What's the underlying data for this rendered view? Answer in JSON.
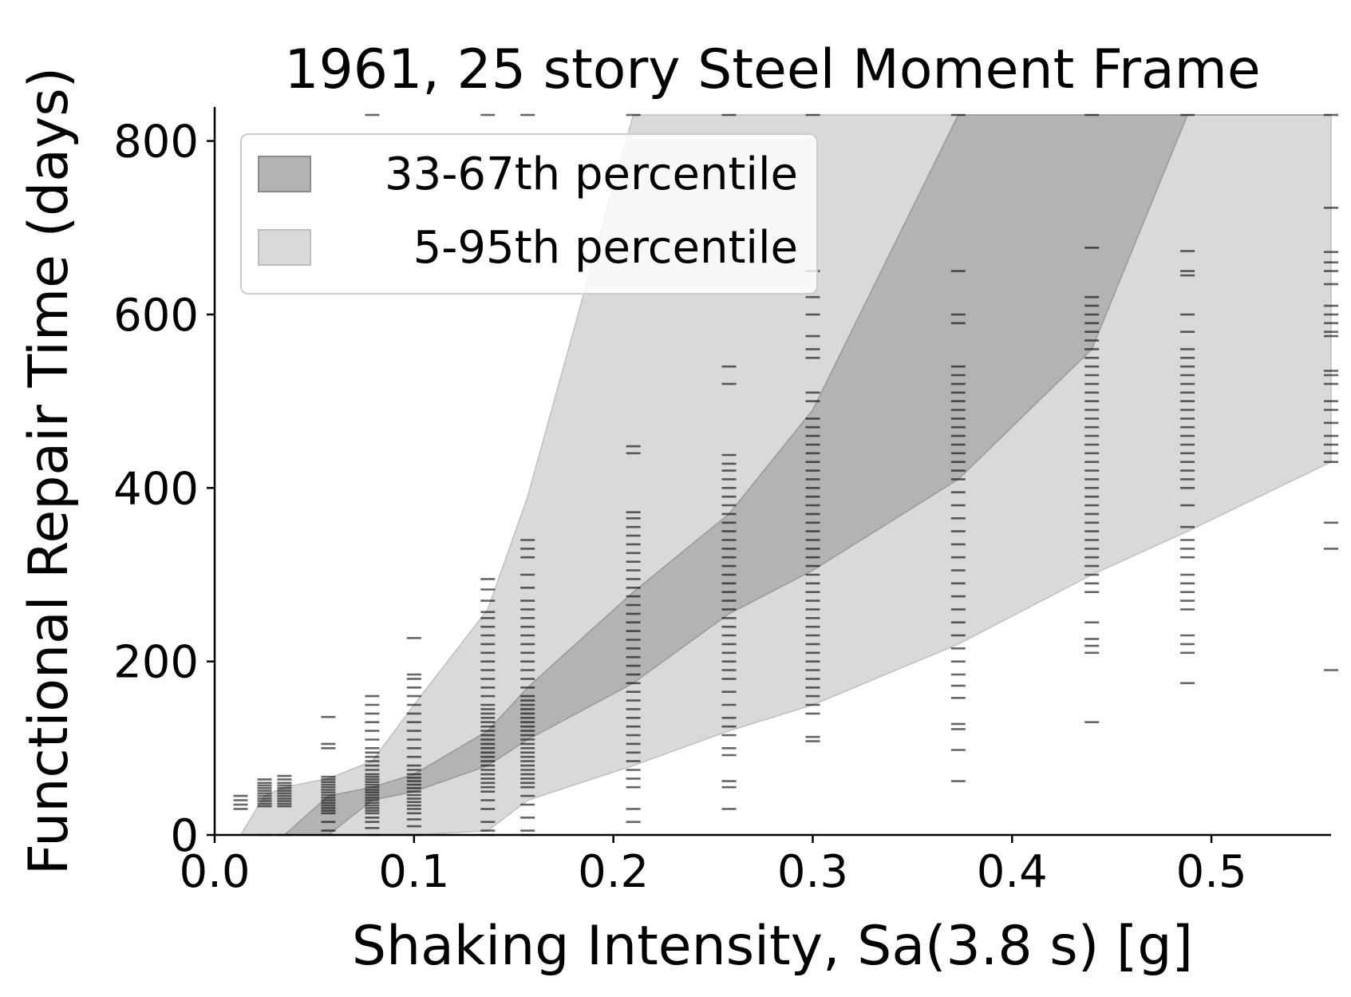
{
  "chart_data": {
    "type": "area",
    "title": "1961, 25 story Steel Moment Frame",
    "xlabel": "Shaking Intensity, Sa(3.8 s) [g]",
    "ylabel": "Functional Repair Time (days)",
    "xlim": [
      0.0,
      0.56
    ],
    "ylim": [
      0,
      830
    ],
    "x_ticks": [
      0.0,
      0.1,
      0.2,
      0.3,
      0.4,
      0.5
    ],
    "x_tick_labels": [
      "0.0",
      "0.1",
      "0.2",
      "0.3",
      "0.4",
      "0.5"
    ],
    "y_ticks": [
      0,
      200,
      400,
      600,
      800
    ],
    "y_tick_labels": [
      "0",
      "200",
      "400",
      "600",
      "800"
    ],
    "grid": false,
    "legend_position": "top-left",
    "legend": [
      {
        "label": "33-67th percentile",
        "color": "#b3b3b3"
      },
      {
        "label": "5-95th percentile",
        "color": "#d9d9d9"
      }
    ],
    "bands": [
      {
        "name": "5-95th percentile",
        "color": "#d9d9d9",
        "x": [
          0.013,
          0.025,
          0.035,
          0.057,
          0.079,
          0.1,
          0.137,
          0.157,
          0.21,
          0.258,
          0.3,
          0.373,
          0.44,
          0.488,
          0.56
        ],
        "lower": [
          0,
          0,
          0,
          0,
          0,
          0,
          5,
          40,
          80,
          120,
          150,
          220,
          300,
          350,
          430
        ],
        "upper": [
          0,
          45,
          55,
          65,
          85,
          150,
          260,
          390,
          830,
          830,
          830,
          830,
          830,
          830,
          830
        ]
      },
      {
        "name": "33-67th percentile",
        "color": "#b3b3b3",
        "x": [
          0.035,
          0.057,
          0.079,
          0.1,
          0.137,
          0.157,
          0.21,
          0.258,
          0.3,
          0.373,
          0.44,
          0.488,
          0.56
        ],
        "lower": [
          0,
          0,
          40,
          50,
          80,
          110,
          175,
          255,
          305,
          410,
          560,
          830,
          830
        ],
        "upper": [
          0,
          45,
          55,
          70,
          120,
          170,
          280,
          370,
          490,
          830,
          830,
          830,
          830
        ]
      }
    ],
    "realizations": [
      {
        "x": 0.013,
        "values": [
          30,
          35,
          40,
          45
        ]
      },
      {
        "x": 0.025,
        "values": [
          0,
          33,
          36,
          39,
          42,
          45,
          48,
          51,
          54,
          57,
          60,
          64
        ]
      },
      {
        "x": 0.035,
        "values": [
          0,
          33,
          36,
          39,
          42,
          45,
          48,
          51,
          54,
          57,
          60,
          64,
          68
        ]
      },
      {
        "x": 0.057,
        "values": [
          0,
          5,
          15,
          25,
          28,
          31,
          34,
          37,
          40,
          43,
          46,
          49,
          52,
          55,
          58,
          61,
          64,
          67,
          100,
          105,
          136
        ]
      },
      {
        "x": 0.079,
        "values": [
          0,
          8,
          15,
          20,
          25,
          28,
          31,
          34,
          37,
          40,
          43,
          46,
          49,
          52,
          55,
          58,
          61,
          64,
          67,
          70,
          75,
          80,
          85,
          90,
          95,
          100,
          110,
          120,
          130,
          140,
          150,
          160,
          830
        ]
      },
      {
        "x": 0.1,
        "values": [
          0,
          10,
          18,
          25,
          30,
          34,
          38,
          42,
          46,
          50,
          54,
          58,
          62,
          66,
          70,
          75,
          80,
          90,
          100,
          110,
          120,
          130,
          140,
          150,
          160,
          170,
          180,
          185,
          227
        ]
      },
      {
        "x": 0.137,
        "values": [
          0,
          5,
          15,
          30,
          40,
          50,
          55,
          60,
          65,
          70,
          75,
          80,
          85,
          90,
          95,
          100,
          105,
          110,
          115,
          120,
          125,
          130,
          135,
          140,
          145,
          150,
          160,
          170,
          180,
          190,
          200,
          210,
          220,
          230,
          240,
          250,
          257,
          270,
          283,
          295,
          830
        ]
      },
      {
        "x": 0.157,
        "values": [
          0,
          5,
          20,
          35,
          45,
          55,
          60,
          65,
          70,
          75,
          80,
          85,
          90,
          95,
          100,
          105,
          110,
          115,
          120,
          125,
          130,
          135,
          140,
          145,
          150,
          155,
          160,
          170,
          180,
          190,
          200,
          210,
          220,
          230,
          240,
          250,
          260,
          270,
          285,
          300,
          320,
          330,
          340,
          830
        ]
      },
      {
        "x": 0.21,
        "values": [
          15,
          30,
          55,
          65,
          75,
          85,
          95,
          105,
          115,
          125,
          135,
          145,
          155,
          165,
          175,
          185,
          195,
          205,
          215,
          225,
          235,
          245,
          255,
          265,
          275,
          285,
          295,
          305,
          315,
          325,
          335,
          345,
          355,
          365,
          372,
          440,
          448,
          830
        ]
      },
      {
        "x": 0.258,
        "values": [
          30,
          55,
          62,
          92,
          100,
          115,
          125,
          135,
          150,
          165,
          180,
          190,
          200,
          210,
          220,
          230,
          240,
          250,
          260,
          270,
          280,
          290,
          300,
          310,
          320,
          330,
          340,
          350,
          360,
          370,
          380,
          390,
          400,
          410,
          420,
          428,
          438,
          520,
          540,
          830
        ]
      },
      {
        "x": 0.3,
        "values": [
          108,
          113,
          140,
          150,
          160,
          170,
          180,
          190,
          200,
          210,
          220,
          230,
          240,
          250,
          260,
          270,
          280,
          290,
          300,
          310,
          320,
          330,
          340,
          350,
          360,
          370,
          380,
          390,
          400,
          410,
          420,
          430,
          440,
          450,
          460,
          470,
          480,
          500,
          510,
          550,
          560,
          575,
          600,
          620,
          650,
          830
        ]
      },
      {
        "x": 0.373,
        "values": [
          62,
          98,
          122,
          128,
          158,
          172,
          185,
          200,
          215,
          230,
          245,
          260,
          275,
          290,
          305,
          320,
          335,
          350,
          365,
          380,
          395,
          410,
          420,
          430,
          440,
          450,
          460,
          470,
          480,
          490,
          500,
          510,
          520,
          530,
          540,
          590,
          600,
          650,
          830
        ]
      },
      {
        "x": 0.44,
        "values": [
          130,
          210,
          218,
          226,
          245,
          280,
          290,
          300,
          310,
          320,
          330,
          340,
          350,
          360,
          370,
          380,
          390,
          400,
          410,
          420,
          430,
          440,
          450,
          460,
          470,
          480,
          490,
          500,
          510,
          520,
          530,
          540,
          550,
          560,
          570,
          580,
          590,
          600,
          610,
          620,
          677,
          830
        ]
      },
      {
        "x": 0.488,
        "values": [
          175,
          210,
          220,
          230,
          260,
          270,
          280,
          290,
          300,
          320,
          330,
          340,
          355,
          380,
          400,
          410,
          420,
          430,
          440,
          450,
          460,
          470,
          480,
          490,
          500,
          510,
          520,
          530,
          540,
          550,
          560,
          580,
          600,
          645,
          650,
          673,
          830
        ]
      },
      {
        "x": 0.56,
        "values": [
          190,
          330,
          360,
          430,
          440,
          450,
          460,
          475,
          490,
          500,
          520,
          530,
          535,
          575,
          580,
          590,
          600,
          610,
          635,
          650,
          660,
          672,
          723,
          830
        ]
      }
    ]
  }
}
